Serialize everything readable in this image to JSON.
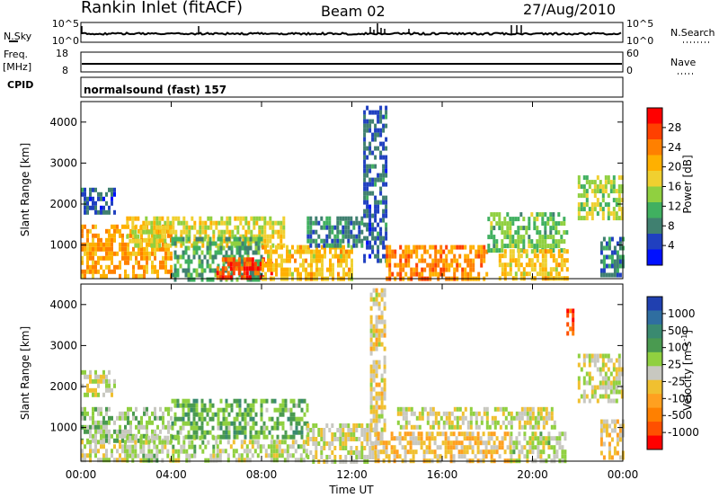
{
  "header": {
    "station": "Rankin Inlet (fitACF)",
    "beam": "Beam 02",
    "date": "27/Aug/2010"
  },
  "top_panels": {
    "nsky_label": "N.Sky",
    "nsky_ticks": [
      "10^5",
      "10^0"
    ],
    "nsearch_label": "N.Search",
    "nsearch_ticks": [
      "10^5",
      "10^0"
    ],
    "freq_label": "Freq.",
    "freq_unit": "[MHz]",
    "freq_ticks": [
      "18",
      "8"
    ],
    "nave_label": "Nave",
    "nave_ticks": [
      "60",
      "0"
    ],
    "cpid_label": "CPID",
    "cpid_value": "normalsound (fast) 157"
  },
  "axes": {
    "ylabel": "Slant Range [km]",
    "xlabel": "Time UT",
    "y_ticks": [
      "1000",
      "2000",
      "3000",
      "4000"
    ],
    "x_ticks": [
      "00:00",
      "04:00",
      "08:00",
      "12:00",
      "16:00",
      "20:00",
      "00:00"
    ]
  },
  "colorbars": {
    "power": {
      "label": "Power [dB]",
      "ticks": [
        "28",
        "24",
        "20",
        "16",
        "12",
        "8",
        "4"
      ],
      "colors": [
        "#ff0000",
        "#ff4000",
        "#ff8000",
        "#ffb000",
        "#f0d030",
        "#90d040",
        "#40b060",
        "#408070",
        "#2040c0",
        "#0010ff"
      ]
    },
    "velocity": {
      "label": "Velocity [m s",
      "label_sup": "-1",
      "label_end": "]",
      "ticks": [
        "1000",
        "500",
        "100",
        "25",
        "-25",
        "-100",
        "-500",
        "-1000"
      ],
      "colors": [
        "#2040b0",
        "#2f6ea0",
        "#3a8a70",
        "#4a9a50",
        "#90d040",
        "#c8c8c0",
        "#f0c030",
        "#ffa020",
        "#ff8000",
        "#ff5000",
        "#ff0000"
      ]
    }
  },
  "chart_data": [
    {
      "type": "heatmap",
      "title": "Power",
      "xlabel": "Time UT",
      "ylabel": "Slant Range [km]",
      "xlim": [
        "00:00",
        "24:00"
      ],
      "ylim": [
        180,
        4500
      ],
      "colorbar_label": "Power [dB]",
      "colorbar_range": [
        0,
        30
      ],
      "regions": [
        {
          "t": [
            0.0,
            4.0
          ],
          "range_km": [
            200,
            1500
          ],
          "value_db": 20
        },
        {
          "t": [
            0.0,
            1.5
          ],
          "range_km": [
            1800,
            2400
          ],
          "value_db": 6
        },
        {
          "t": [
            2.0,
            9.0
          ],
          "range_km": [
            1000,
            1700
          ],
          "value_db": 16
        },
        {
          "t": [
            4.0,
            8.0
          ],
          "range_km": [
            200,
            1200
          ],
          "value_db": 10
        },
        {
          "t": [
            6.0,
            8.5
          ],
          "range_km": [
            200,
            700
          ],
          "value_db": 26
        },
        {
          "t": [
            8.0,
            12.0
          ],
          "range_km": [
            200,
            1000
          ],
          "value_db": 18
        },
        {
          "t": [
            10.0,
            12.5
          ],
          "range_km": [
            1000,
            1700
          ],
          "value_db": 8
        },
        {
          "t": [
            12.5,
            13.5
          ],
          "range_km": [
            600,
            4400
          ],
          "value_db": 6
        },
        {
          "t": [
            13.5,
            18.0
          ],
          "range_km": [
            200,
            1000
          ],
          "value_db": 22
        },
        {
          "t": [
            18.0,
            21.5
          ],
          "range_km": [
            900,
            1800
          ],
          "value_db": 12
        },
        {
          "t": [
            18.5,
            21.5
          ],
          "range_km": [
            200,
            900
          ],
          "value_db": 18
        },
        {
          "t": [
            22.0,
            24.0
          ],
          "range_km": [
            1700,
            2700
          ],
          "value_db": 14
        },
        {
          "t": [
            23.0,
            24.0
          ],
          "range_km": [
            300,
            1200
          ],
          "value_db": 8
        }
      ]
    },
    {
      "type": "heatmap",
      "title": "Velocity",
      "xlabel": "Time UT",
      "ylabel": "Slant Range [km]",
      "xlim": [
        "00:00",
        "24:00"
      ],
      "ylim": [
        180,
        4500
      ],
      "colorbar_label": "Velocity [m s-1]",
      "colorbar_range": [
        -1000,
        1000
      ],
      "regions": [
        {
          "t": [
            0.0,
            1.5
          ],
          "range_km": [
            1800,
            2400
          ],
          "value_ms": 0
        },
        {
          "t": [
            0.0,
            4.0
          ],
          "range_km": [
            700,
            1500
          ],
          "value_ms": 150
        },
        {
          "t": [
            0.0,
            2.0
          ],
          "range_km": [
            200,
            700
          ],
          "value_ms": 0
        },
        {
          "t": [
            2.0,
            6.0
          ],
          "range_km": [
            200,
            800
          ],
          "value_ms": 80
        },
        {
          "t": [
            4.0,
            10.0
          ],
          "range_km": [
            800,
            1700
          ],
          "value_ms": 300
        },
        {
          "t": [
            6.0,
            10.0
          ],
          "range_km": [
            200,
            700
          ],
          "value_ms": 60
        },
        {
          "t": [
            10.0,
            13.0
          ],
          "range_km": [
            200,
            1100
          ],
          "value_ms": 0
        },
        {
          "t": [
            12.8,
            13.5
          ],
          "range_km": [
            600,
            4400
          ],
          "value_ms": -100
        },
        {
          "t": [
            13.0,
            19.0
          ],
          "range_km": [
            200,
            900
          ],
          "value_ms": -200
        },
        {
          "t": [
            14.0,
            21.0
          ],
          "range_km": [
            1000,
            1500
          ],
          "value_ms": 0
        },
        {
          "t": [
            19.0,
            21.5
          ],
          "range_km": [
            200,
            900
          ],
          "value_ms": 60
        },
        {
          "t": [
            21.5,
            21.8
          ],
          "range_km": [
            3300,
            3900
          ],
          "value_ms": -700
        },
        {
          "t": [
            22.0,
            24.0
          ],
          "range_km": [
            1700,
            2800
          ],
          "value_ms": 0
        },
        {
          "t": [
            23.0,
            24.0
          ],
          "range_km": [
            300,
            1200
          ],
          "value_ms": -150
        }
      ]
    }
  ]
}
